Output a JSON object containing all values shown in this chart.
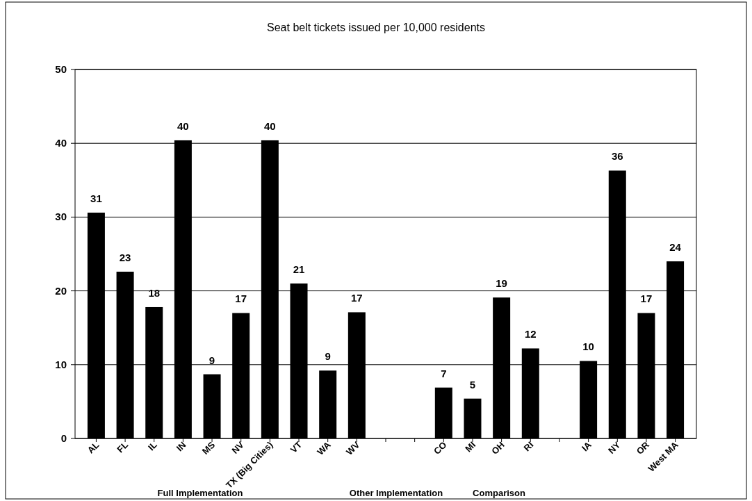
{
  "chart_data": {
    "type": "bar",
    "title": "Seat belt tickets issued per 10,000 residents",
    "categories": [
      "AL",
      "FL",
      "IL",
      "IN",
      "MS",
      "NV",
      "TX (Big Cities)",
      "VT",
      "WA",
      "WV",
      null,
      null,
      "CO",
      "MI",
      "OH",
      "RI",
      null,
      "IA",
      "NY",
      "OR",
      "West MA"
    ],
    "values": [
      30.6,
      22.6,
      17.8,
      40.4,
      8.7,
      17,
      40.4,
      21,
      9.2,
      17.1,
      null,
      null,
      6.9,
      5.4,
      19.1,
      12.2,
      null,
      10.5,
      36.3,
      17,
      24
    ],
    "value_labels": [
      "31",
      "23",
      "18",
      "40",
      "9",
      "17",
      "40",
      "21",
      "9",
      "17",
      null,
      null,
      "7",
      "5",
      "19",
      "12",
      null,
      "10",
      "36",
      "17",
      "24"
    ],
    "color": "#000000",
    "ylim": [
      0,
      50
    ],
    "yticks": [
      0,
      10,
      20,
      30,
      40,
      50
    ],
    "grid": "y",
    "annotations": [
      "Full Implementation",
      "Other Implementation",
      "Comparison"
    ]
  }
}
